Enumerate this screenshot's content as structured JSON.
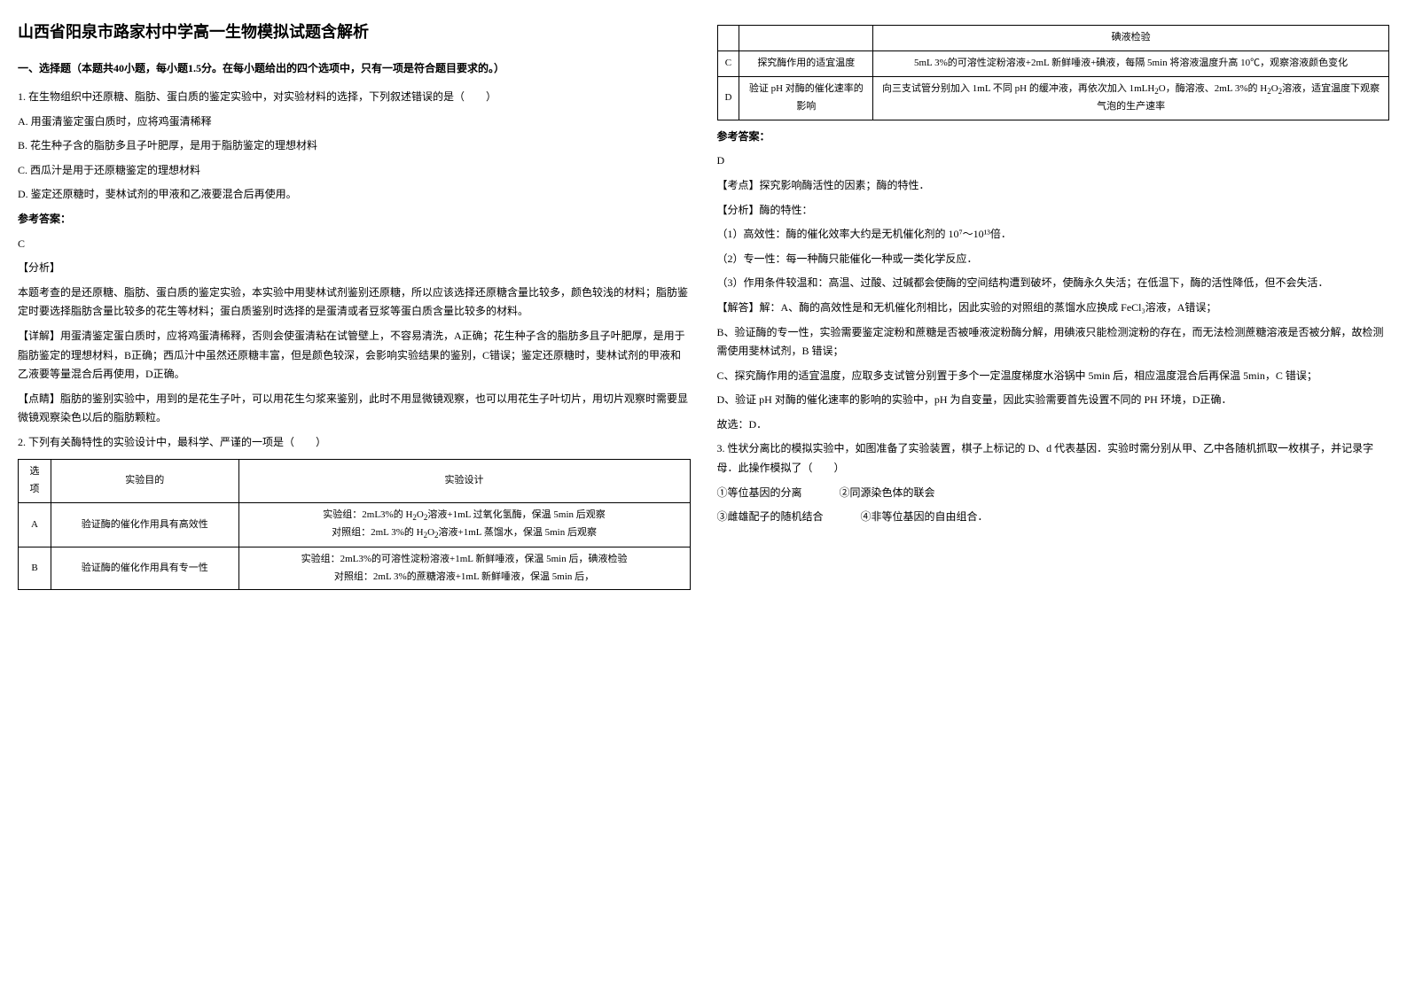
{
  "title": "山西省阳泉市路家村中学高一生物模拟试题含解析",
  "section1_header": "一、选择题（本题共40小题，每小题1.5分。在每小题给出的四个选项中，只有一项是符合题目要求的。）",
  "q1": {
    "stem": "1. 在生物组织中还原糖、脂肪、蛋白质的鉴定实验中，对实验材料的选择，下列叙述错误的是（　　）",
    "optA": "A. 用蛋清鉴定蛋白质时，应将鸡蛋清稀释",
    "optB": "B.  花生种子含的脂肪多且子叶肥厚，是用于脂肪鉴定的理想材料",
    "optC": "C.  西瓜汁是用于还原糖鉴定的理想材料",
    "optD": "D.  鉴定还原糖时，斐林试剂的甲液和乙液要混合后再使用。",
    "answer_label": "参考答案：",
    "answer": "C",
    "analysis_label": "【分析】",
    "analysis_p1": "本题考查的是还原糖、脂肪、蛋白质的鉴定实验，本实验中用斐林试剂鉴别还原糖，所以应该选择还原糖含量比较多，颜色较浅的材料；脂肪鉴定时要选择脂肪含量比较多的花生等材料；蛋白质鉴别时选择的是蛋清或者豆浆等蛋白质含量比较多的材料。",
    "detail_label": "【详解】用蛋清鉴定蛋白质时，应将鸡蛋清稀释，否则会使蛋清粘在试管壁上，不容易清洗，A正确；花生种子含的脂肪多且子叶肥厚，是用于脂肪鉴定的理想材料，B正确；西瓜汁中虽然还原糖丰富，但是颜色较深，会影响实验结果的鉴别，C错误；鉴定还原糖时，斐林试剂的甲液和乙液要等量混合后再使用，D正确。",
    "point_label": "【点睛】脂肪的鉴别实验中，用到的是花生子叶，可以用花生匀浆来鉴别，此时不用显微镜观察，也可以用花生子叶切片，用切片观察时需要显微镜观察染色以后的脂肪颗粒。"
  },
  "q2": {
    "stem": "2. 下列有关酶特性的实验设计中，最科学、严谨的一项是（　　）",
    "table": {
      "headers": [
        "选项",
        "实验目的",
        "实验设计"
      ],
      "rows": [
        {
          "opt": "A",
          "purpose": "验证酶的催化作用具有高效性",
          "design": "实验组：2mL3%的 H₂O₂溶液+1mL 过氧化氢酶，保温 5min 后观察\n对照组：2mL 3%的 H₂O₂溶液+1mL 蒸馏水，保温 5min 后观察"
        },
        {
          "opt": "B",
          "purpose": "验证酶的催化作用具有专一性",
          "design": "实验组：2mL3%的可溶性淀粉溶液+1mL 新鲜唾液，保温 5min 后，碘液检验\n对照组：2mL 3%的蔗糖溶液+1mL 新鲜唾液，保温 5min 后，碘液检验"
        },
        {
          "opt": "C",
          "purpose": "探究酶作用的适宜温度",
          "design": "5mL 3%的可溶性淀粉溶液+2mL 新鲜唾液+碘液，每隔 5min 将溶液温度升高 10℃，观察溶液颜色变化"
        },
        {
          "opt": "D",
          "purpose": "验证 pH 对酶的催化速率的影响",
          "design": "向三支试管分别加入 1mL 不同 pH 的缓冲液，再依次加入 1mLH₂O，酶溶液、2mL 3%的 H₂O₂溶液，适宜温度下观察气泡的生产速率"
        }
      ]
    },
    "answer_label": "参考答案：",
    "answer": "D",
    "kaodian": "【考点】探究影响酶活性的因素；酶的特性．",
    "fenxi_label": "【分析】酶的特性：",
    "fenxi_1": "（1）高效性：酶的催化效率大约是无机催化剂的 10⁷～10¹³倍．",
    "fenxi_2": "（2）专一性：每一种酶只能催化一种或一类化学反应．",
    "fenxi_3": "（3）作用条件较温和：高温、过酸、过碱都会使酶的空间结构遭到破坏，使酶永久失活；在低温下，酶的活性降低，但不会失活．",
    "jieda_A": "【解答】解：A、酶的高效性是和无机催化剂相比，因此实验的对照组的蒸馏水应换成 FeCl₃溶液，A错误；",
    "jieda_B": "B、验证酶的专一性，实验需要鉴定淀粉和蔗糖是否被唾液淀粉酶分解，用碘液只能检测淀粉的存在，而无法检测蔗糖溶液是否被分解，故检测需使用斐林试剂，B 错误；",
    "jieda_C": "C、探究酶作用的适宜温度，应取多支试管分别置于多个一定温度梯度水浴锅中 5min 后，相应温度混合后再保温 5min，C 错误；",
    "jieda_D": "D、验证 pH 对酶的催化速率的影响的实验中，pH 为自变量，因此实验需要首先设置不同的 PH 环境，D正确．",
    "conclusion": "故选：D．"
  },
  "q3": {
    "stem": "3. 性状分离比的模拟实验中，如图准备了实验装置，棋子上标记的 D、d 代表基因．实验时需分别从甲、乙中各随机抓取一枚棋子，并记录字母．此操作模拟了（　　）",
    "opt1": "①等位基因的分离",
    "opt2": "②同源染色体的联会",
    "opt3": "③雌雄配子的随机结合",
    "opt4": "④非等位基因的自由组合．"
  }
}
